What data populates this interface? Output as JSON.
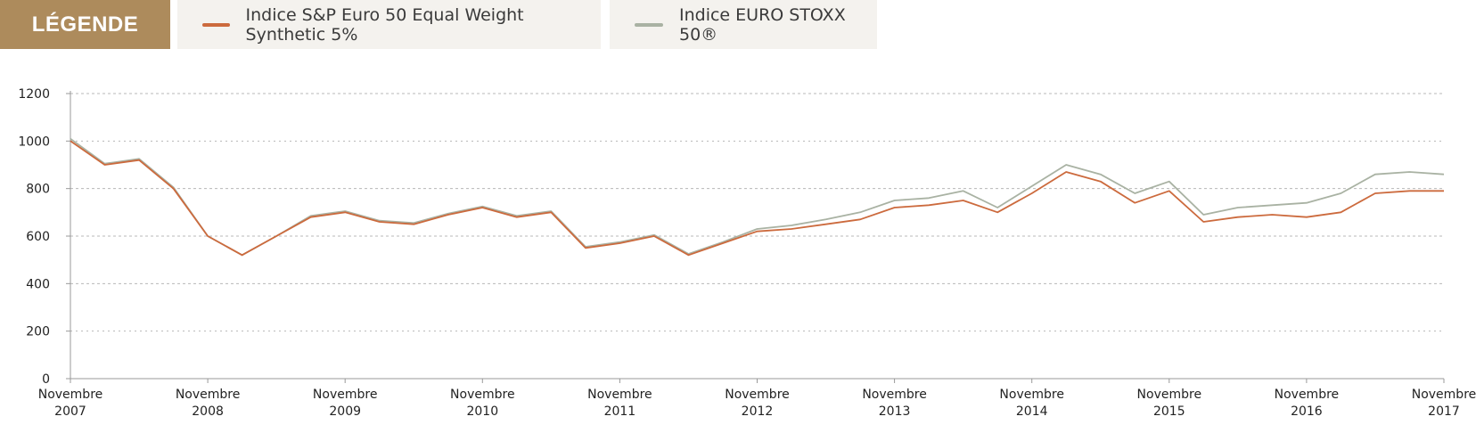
{
  "legend": {
    "title": "LÉGENDE",
    "items": [
      {
        "label": "Indice S&P Euro 50 Equal Weight Synthetic 5%",
        "color": "#cc6a3d"
      },
      {
        "label": "Indice EURO STOXX 50®",
        "color": "#a9b2a3"
      }
    ]
  },
  "chart_data": {
    "type": "line",
    "title": "",
    "xlabel": "",
    "ylabel": "",
    "ylim": [
      0,
      1200
    ],
    "yticks": [
      0,
      200,
      400,
      600,
      800,
      1000,
      1200
    ],
    "xlim": [
      "2007-11",
      "2017-11"
    ],
    "xticks": [
      {
        "line1": "Novembre",
        "line2": "2007"
      },
      {
        "line1": "Novembre",
        "line2": "2008"
      },
      {
        "line1": "Novembre",
        "line2": "2009"
      },
      {
        "line1": "Novembre",
        "line2": "2010"
      },
      {
        "line1": "Novembre",
        "line2": "2011"
      },
      {
        "line1": "Novembre",
        "line2": "2012"
      },
      {
        "line1": "Novembre",
        "line2": "2013"
      },
      {
        "line1": "Novembre",
        "line2": "2014"
      },
      {
        "line1": "Novembre",
        "line2": "2015"
      },
      {
        "line1": "Novembre",
        "line2": "2016"
      },
      {
        "line1": "Novembre",
        "line2": "2017"
      }
    ],
    "grid": true,
    "legend_position": "top",
    "x": [
      "2007-11",
      "2008-02",
      "2008-05",
      "2008-08",
      "2008-11",
      "2009-02",
      "2009-05",
      "2009-08",
      "2009-11",
      "2010-02",
      "2010-05",
      "2010-08",
      "2010-11",
      "2011-02",
      "2011-05",
      "2011-08",
      "2011-11",
      "2012-02",
      "2012-05",
      "2012-08",
      "2012-11",
      "2013-02",
      "2013-05",
      "2013-08",
      "2013-11",
      "2014-02",
      "2014-05",
      "2014-08",
      "2014-11",
      "2015-02",
      "2015-05",
      "2015-08",
      "2015-11",
      "2016-02",
      "2016-05",
      "2016-08",
      "2016-11",
      "2017-02",
      "2017-05",
      "2017-08",
      "2017-11"
    ],
    "series": [
      {
        "name": "Indice S&P Euro 50 Equal Weight Synthetic 5%",
        "color": "#cc6a3d",
        "values": [
          1000,
          900,
          920,
          800,
          600,
          520,
          600,
          680,
          700,
          660,
          650,
          690,
          720,
          680,
          700,
          550,
          570,
          600,
          520,
          570,
          620,
          630,
          650,
          670,
          720,
          730,
          750,
          700,
          780,
          870,
          830,
          740,
          790,
          660,
          680,
          690,
          680,
          700,
          780,
          790,
          790
        ]
      },
      {
        "name": "Indice EURO STOXX 50®",
        "color": "#a9b2a3",
        "values": [
          1010,
          905,
          925,
          805,
          600,
          520,
          600,
          685,
          705,
          665,
          655,
          695,
          725,
          685,
          705,
          555,
          575,
          605,
          525,
          575,
          630,
          645,
          670,
          700,
          750,
          760,
          790,
          720,
          810,
          900,
          860,
          780,
          830,
          690,
          720,
          730,
          740,
          780,
          860,
          870,
          860
        ]
      }
    ]
  }
}
